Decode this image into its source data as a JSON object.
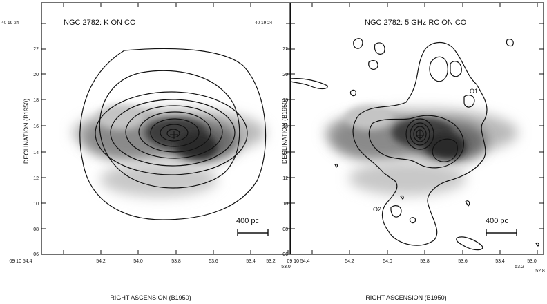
{
  "figure": {
    "panels": [
      {
        "title": "NGC 2782: K ON  CO",
        "corner_dec_label": "40 19 24",
        "corner_ra_label": "09 10 54.4",
        "y_ticks": [
          "22",
          "20",
          "18",
          "16",
          "14",
          "12",
          "10",
          "08",
          "06"
        ],
        "x_ticks": [
          "54.2",
          "54.0",
          "53.8",
          "53.6",
          "53.4",
          "53.2",
          "53.0"
        ],
        "scale_bar": "400 pc",
        "ylabel": "DECLINATION (B1950)",
        "xlabel": "RIGHT ASCENSION (B1950)"
      },
      {
        "title": "NGC 2782: 5 GHz RC ON  CO",
        "corner_dec_label": "40 19 24",
        "corner_ra_label": "09 10 54.4",
        "y_ticks": [
          "22",
          "20",
          "18",
          "16",
          "14",
          "12",
          "10",
          "08",
          "06"
        ],
        "x_ticks": [
          "54.2",
          "54.0",
          "53.8",
          "53.6",
          "53.4",
          "53.2",
          "53.0",
          "52.8"
        ],
        "scale_bar": "400 pc",
        "ylabel": "DECLINATION (B1950)",
        "xlabel": "RIGHT ASCENSION (B1950)",
        "annotations": [
          "O1",
          "O2"
        ]
      }
    ],
    "colors": {
      "ink": "#111111",
      "grey_dark": "#2a2a2a",
      "grey_light": "#bdbdbd"
    }
  }
}
